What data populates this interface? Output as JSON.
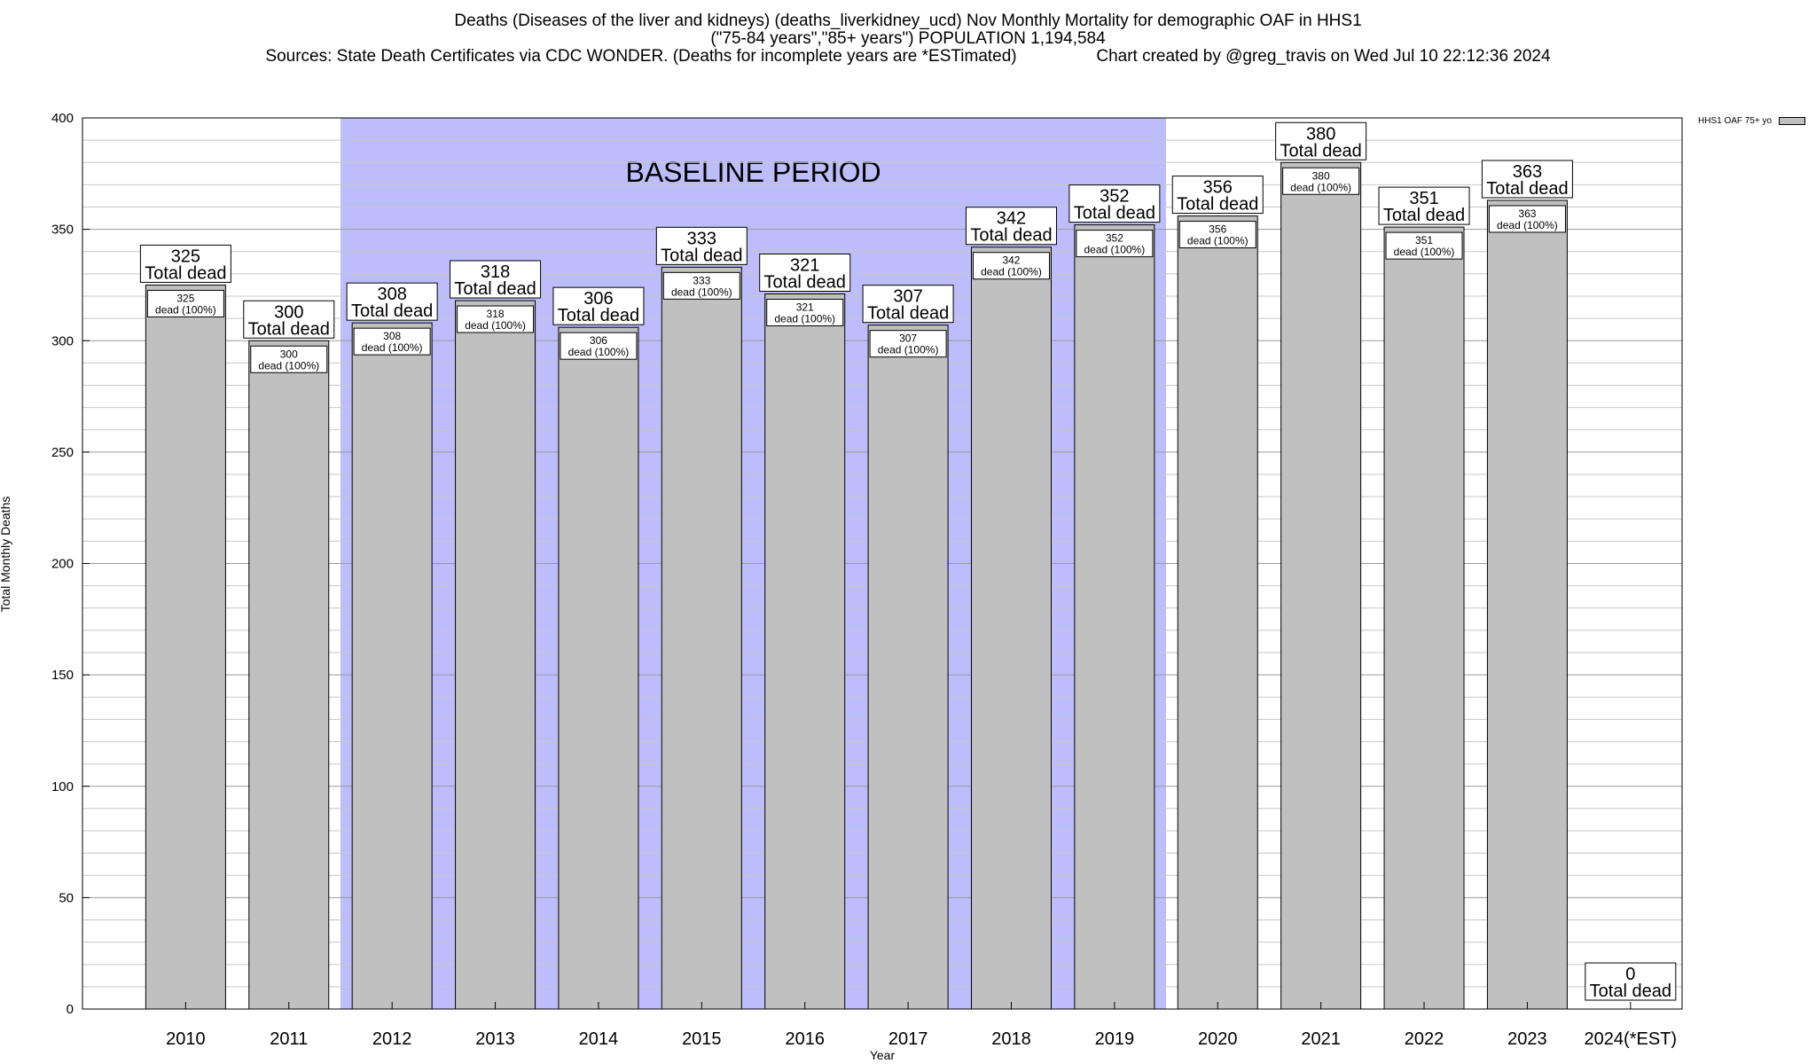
{
  "title_lines": [
    "Deaths (Diseases of the liver and kidneys) (deaths_liverkidney_ucd) Nov Monthly Mortality for demographic OAF in HHS1",
    "(\"75-84 years\",\"85+ years\") POPULATION 1,194,584",
    "Sources: State Death Certificates via CDC WONDER. (Deaths for incomplete years are *ESTimated)                 Chart created by @greg_travis on Wed Jul 10 22:12:36 2024"
  ],
  "legend": {
    "label": "HHS1 OAF 75+ yo",
    "color": "#c0c0c0"
  },
  "chart_data": {
    "type": "bar",
    "xlabel": "Year",
    "ylabel": "Total Monthly Deaths",
    "ylim": [
      0,
      400
    ],
    "yticks": [
      0,
      50,
      100,
      150,
      200,
      250,
      300,
      350,
      400
    ],
    "grid": "horizontal",
    "categories": [
      "2010",
      "2011",
      "2012",
      "2013",
      "2014",
      "2015",
      "2016",
      "2017",
      "2018",
      "2019",
      "2020",
      "2021",
      "2022",
      "2023",
      "2024(*EST)"
    ],
    "values": [
      325,
      300,
      308,
      318,
      306,
      333,
      321,
      307,
      342,
      352,
      356,
      380,
      351,
      363,
      0
    ],
    "bar_color": "#c0c0c0",
    "top_label_suffix": "Total dead",
    "inner_label_suffix": "dead (100%)",
    "baseline_period": {
      "label": "BASELINE PERIOD",
      "from": "2012",
      "to": "2019",
      "color": "#bdbdfb"
    }
  }
}
